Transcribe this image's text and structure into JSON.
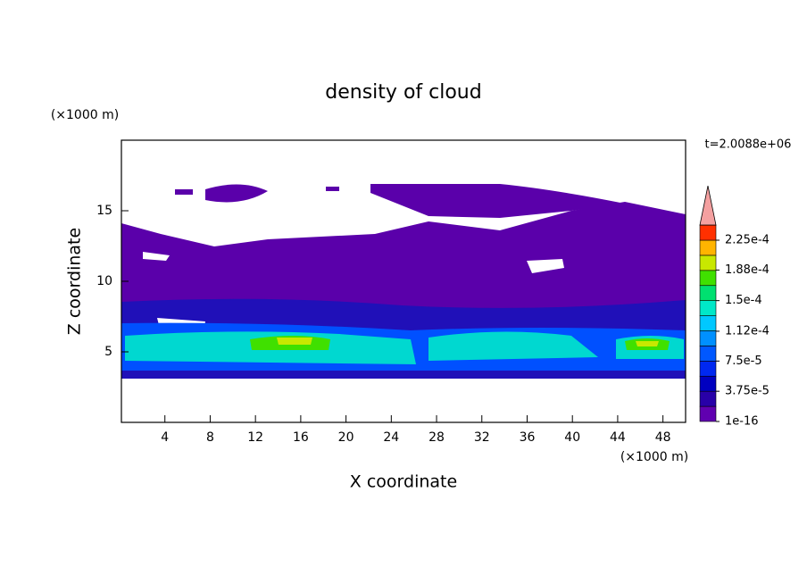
{
  "chart_data": {
    "type": "contour",
    "title": "density of cloud",
    "x_label": "X coordinate",
    "y_label": "Z coordinate",
    "x_unit": "(×1000 m)",
    "y_unit": "(×1000 m)",
    "annotation": "t=2.0088e+06",
    "xlim": [
      0,
      50
    ],
    "ylim": [
      0,
      20
    ],
    "xticks": [
      4,
      8,
      12,
      16,
      20,
      24,
      28,
      32,
      36,
      40,
      44,
      48
    ],
    "yticks": [
      5,
      10,
      15
    ],
    "colorbar_ticks": [
      {
        "value": 1e-16,
        "label": "1e-16"
      },
      {
        "value": 3.75e-05,
        "label": "3.75e-5"
      },
      {
        "value": 7.5e-05,
        "label": "7.5e-5"
      },
      {
        "value": 0.000112,
        "label": "1.12e-4"
      },
      {
        "value": 0.00015,
        "label": "1.5e-4"
      },
      {
        "value": 0.000188,
        "label": "1.88e-4"
      },
      {
        "value": 0.000225,
        "label": "2.25e-4"
      }
    ],
    "colorbar_colors": [
      "#6000b0",
      "#2800a8",
      "#0000c0",
      "#0028f0",
      "#0058ff",
      "#0090ff",
      "#00c8ff",
      "#00e8c8",
      "#00e070",
      "#40e000",
      "#c8e800",
      "#ffb400",
      "#ff3000"
    ],
    "extend_color": "#f4a0a0"
  }
}
